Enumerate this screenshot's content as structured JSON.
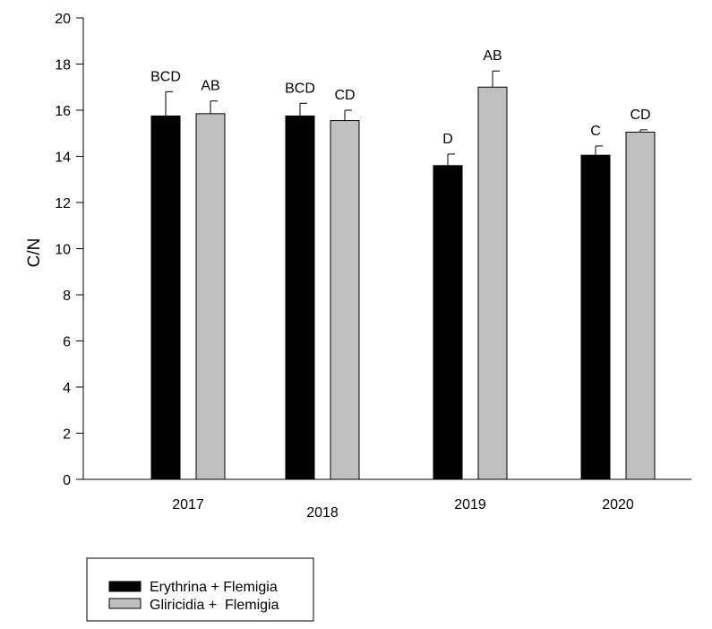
{
  "chart_data": {
    "type": "bar",
    "ylabel": "C/N",
    "xlabel": "",
    "ylim": [
      0,
      20
    ],
    "y_ticks": [
      0,
      2,
      4,
      6,
      8,
      10,
      12,
      14,
      16,
      18,
      20
    ],
    "grid": false,
    "legend_position": "bottom-left",
    "categories": [
      "2017",
      "2018",
      "2019",
      "2020"
    ],
    "series": [
      {
        "name": "Erythrina + Flemigia",
        "color": "#000000",
        "values": [
          15.75,
          15.75,
          13.6,
          14.05
        ],
        "errors": [
          1.05,
          0.55,
          0.5,
          0.4
        ],
        "letters": [
          "BCD",
          "BCD",
          "D",
          "C"
        ]
      },
      {
        "name": "Gliricidia +  Flemigia",
        "color": "#c0c0c0",
        "values": [
          15.85,
          15.55,
          17.0,
          15.05
        ],
        "errors": [
          0.55,
          0.45,
          0.7,
          0.1
        ],
        "letters": [
          "AB",
          "CD",
          "AB",
          "CD"
        ]
      }
    ]
  }
}
